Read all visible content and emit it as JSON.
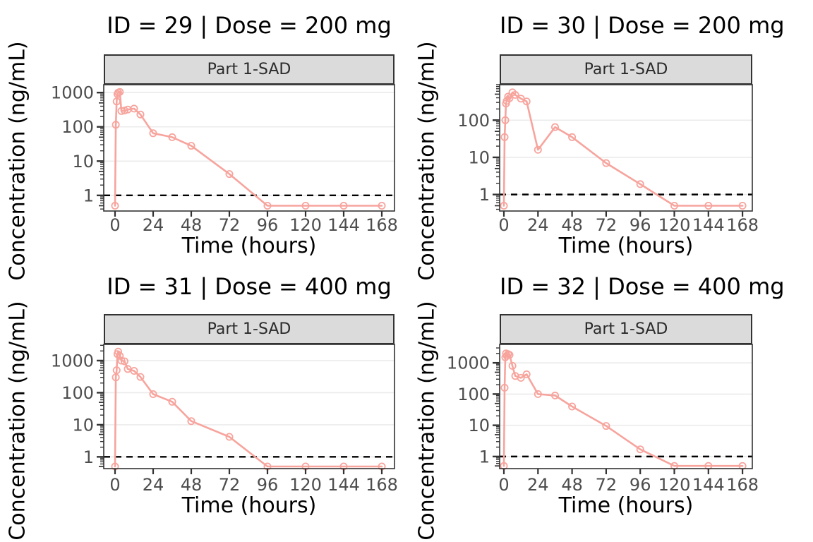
{
  "style": {
    "series_color": "#F7A49D",
    "lloq_line_color": "#000000",
    "grid_color": "#EBEBEB",
    "panel_bg": "#FFFFFF",
    "panel_border": "#333333",
    "strip_bg": "#DBDBDB",
    "strip_border": "#333333",
    "strip_text_color": "#2B2B2B",
    "tick_color": "#333333",
    "tick_label_color": "#4D4D4D",
    "title_color": "#000000",
    "axis_title_color": "#000000"
  },
  "chart_data": [
    {
      "type": "line",
      "y_scale": "log10",
      "title": "ID = 29 | Dose = 200 mg",
      "facet_label": "Part 1-SAD",
      "xlabel": "Time (hours)",
      "ylabel": "Concentration (ng/mL)",
      "x_ticks": [
        0,
        24,
        48,
        72,
        96,
        120,
        144,
        168
      ],
      "y_ticks": [
        1,
        10,
        100,
        1000
      ],
      "ylim": [
        0.35,
        1700
      ],
      "xlim": [
        -7,
        176
      ],
      "lloq": 1,
      "blq_plot_value": 0.5,
      "x": [
        0,
        0.5,
        1,
        1.5,
        2,
        3,
        4,
        6,
        8,
        12,
        16,
        24,
        36,
        48,
        72,
        96,
        120,
        144,
        168
      ],
      "y": [
        0.5,
        115,
        550,
        900,
        1000,
        1050,
        290,
        300,
        320,
        340,
        230,
        65,
        50,
        28,
        4.2,
        0.5,
        0.5,
        0.5,
        0.5
      ]
    },
    {
      "type": "line",
      "y_scale": "log10",
      "title": "ID = 30 | Dose = 200 mg",
      "facet_label": "Part 1-SAD",
      "xlabel": "Time (hours)",
      "ylabel": "Concentration (ng/mL)",
      "x_ticks": [
        0,
        24,
        48,
        72,
        96,
        120,
        144,
        168
      ],
      "y_ticks": [
        1,
        10,
        100
      ],
      "ylim": [
        0.36,
        900
      ],
      "xlim": [
        -7,
        176
      ],
      "lloq": 1,
      "blq_plot_value": 0.5,
      "x": [
        0,
        0.5,
        1,
        1.5,
        2,
        3,
        4,
        6,
        8,
        12,
        16,
        24,
        36,
        48,
        72,
        96,
        120,
        144,
        168
      ],
      "y": [
        0.5,
        35,
        100,
        280,
        330,
        430,
        390,
        560,
        480,
        380,
        320,
        16,
        65,
        35,
        7,
        1.9,
        0.5,
        0.5,
        0.5
      ]
    },
    {
      "type": "line",
      "y_scale": "log10",
      "title": "ID = 31 | Dose = 400 mg",
      "facet_label": "Part 1-SAD",
      "xlabel": "Time (hours)",
      "ylabel": "Concentration (ng/mL)",
      "x_ticks": [
        0,
        24,
        48,
        72,
        96,
        120,
        144,
        168
      ],
      "y_ticks": [
        1,
        10,
        100,
        1000
      ],
      "ylim": [
        0.43,
        3200
      ],
      "xlim": [
        -7,
        176
      ],
      "lloq": 1,
      "blq_plot_value": 0.5,
      "x": [
        0,
        0.5,
        1,
        1.5,
        2,
        3,
        4,
        6,
        8,
        12,
        16,
        24,
        36,
        48,
        72,
        96,
        120,
        144,
        168
      ],
      "y": [
        0.5,
        300,
        500,
        1600,
        1900,
        1400,
        1000,
        950,
        550,
        480,
        310,
        90,
        52,
        13,
        4.2,
        0.5,
        0.5,
        0.5,
        0.5
      ]
    },
    {
      "type": "line",
      "y_scale": "log10",
      "title": "ID = 32 | Dose = 400 mg",
      "facet_label": "Part 1-SAD",
      "xlabel": "Time (hours)",
      "ylabel": "Concentration (ng/mL)",
      "x_ticks": [
        0,
        24,
        48,
        72,
        96,
        120,
        144,
        168
      ],
      "y_ticks": [
        1,
        10,
        100,
        1000
      ],
      "ylim": [
        0.41,
        3900
      ],
      "xlim": [
        -7,
        176
      ],
      "lloq": 1,
      "blq_plot_value": 0.5,
      "x": [
        0,
        0.5,
        1,
        1.5,
        2,
        3,
        4,
        6,
        8,
        12,
        16,
        24,
        36,
        48,
        72,
        96,
        120,
        144,
        168
      ],
      "y": [
        0.5,
        160,
        1500,
        2000,
        1700,
        1900,
        1800,
        800,
        380,
        330,
        430,
        100,
        90,
        40,
        9.5,
        1.7,
        0.5,
        0.5,
        0.5
      ]
    }
  ]
}
